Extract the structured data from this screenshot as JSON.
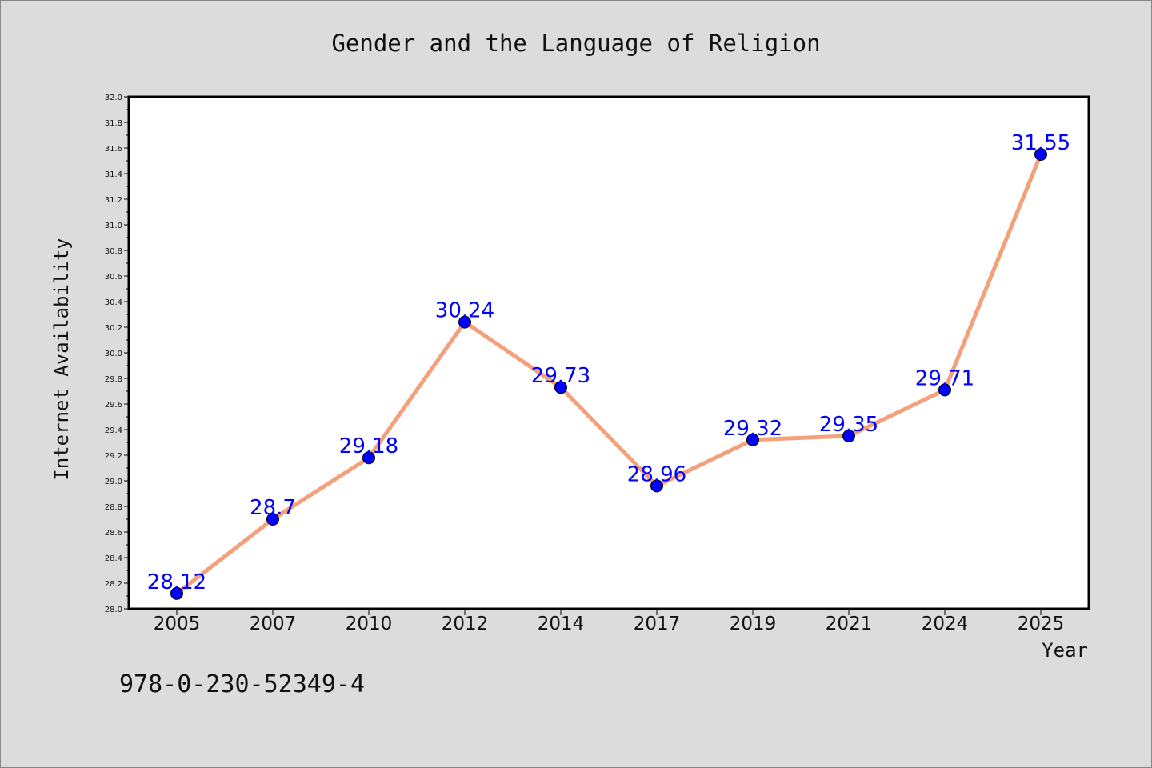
{
  "chart_data": {
    "type": "line",
    "title": "Gender and the Language of Religion",
    "xlabel": "Year",
    "ylabel": "Internet Availability",
    "categories": [
      "2005",
      "2007",
      "2010",
      "2012",
      "2014",
      "2017",
      "2019",
      "2021",
      "2024",
      "2025"
    ],
    "series": [
      {
        "values": [
          28.12,
          28.7,
          29.18,
          30.24,
          29.73,
          28.96,
          29.32,
          29.35,
          29.71,
          31.55
        ],
        "labels": [
          "28.12",
          "28.7",
          "29.18",
          "30.24",
          "29.73",
          "28.96",
          "29.32",
          "29.35",
          "29.71",
          "31.55"
        ],
        "line_color": "#f4a07a",
        "marker_color": "#0000ff"
      }
    ],
    "ylim": [
      28.0,
      32.0
    ],
    "yticks": [
      "28.0",
      "28.2",
      "28.4",
      "28.6",
      "28.8",
      "29.0",
      "29.2",
      "29.4",
      "29.6",
      "29.8",
      "30.0",
      "30.2",
      "30.4",
      "30.6",
      "30.8",
      "31.0",
      "31.2",
      "31.4",
      "31.6",
      "31.8",
      "32.0"
    ],
    "grid": false,
    "legend": "none"
  },
  "footnote": "978-0-230-52349-4",
  "colors": {
    "background": "#dcdcdc",
    "plot_background": "#ffffff",
    "line": "#f4a07a",
    "marker": "#0000ff",
    "data_label": "#0000ff"
  }
}
